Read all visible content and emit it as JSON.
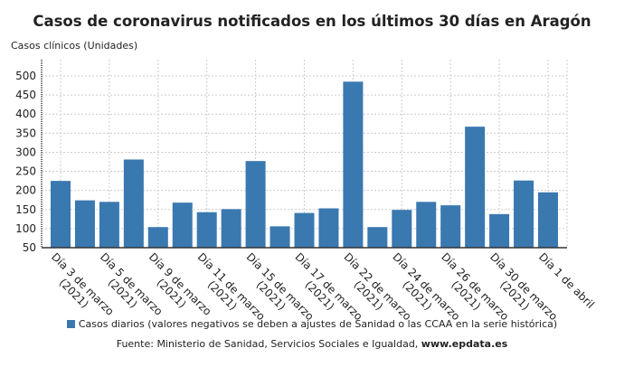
{
  "chart_data": {
    "type": "bar",
    "title": "Casos de coronavirus notificados en los últimos 30 días en Aragón",
    "ylabel": "Casos clínicos (Unidades)",
    "xlabel": "",
    "ylim": [
      50,
      500
    ],
    "yticks": [
      50,
      100,
      150,
      200,
      250,
      300,
      350,
      400,
      450,
      500
    ],
    "grid": true,
    "legend_position": "bottom",
    "color": "#3a78b0",
    "categories": [
      [
        "Día 3 de marzo",
        "(2021)"
      ],
      [
        "",
        ""
      ],
      [
        "Día 5 de marzo",
        "(2021)"
      ],
      [
        "",
        ""
      ],
      [
        "Día 9 de marzo",
        "(2021)"
      ],
      [
        "",
        ""
      ],
      [
        "Día 11 de marzo",
        "(2021)"
      ],
      [
        "",
        ""
      ],
      [
        "Día 15 de marzo",
        "(2021)"
      ],
      [
        "",
        ""
      ],
      [
        "Día 17 de marzo",
        "(2021)"
      ],
      [
        "",
        ""
      ],
      [
        "Día 22 de marzo",
        "(2021)"
      ],
      [
        "",
        ""
      ],
      [
        "Día 24 de marzo",
        "(2021)"
      ],
      [
        "",
        ""
      ],
      [
        "Día 26 de marzo",
        "(2021)"
      ],
      [
        "",
        ""
      ],
      [
        "Día 30 de marzo",
        "(2021)"
      ],
      [
        "",
        ""
      ],
      [
        "Día 1 de abril",
        ""
      ]
    ],
    "series": [
      {
        "name": "Casos diarios (valores negativos se deben a ajustes de Sanidad o las CCAA en la serie histórica)",
        "values": [
          225,
          174,
          170,
          281,
          104,
          168,
          143,
          151,
          277,
          106,
          141,
          153,
          485,
          104,
          149,
          170,
          161,
          367,
          138,
          226,
          195
        ]
      }
    ]
  },
  "source": {
    "prefix": "Fuente: Ministerio de Sanidad, Servicios Sociales e Igualdad, ",
    "site": "www.epdata.es"
  }
}
